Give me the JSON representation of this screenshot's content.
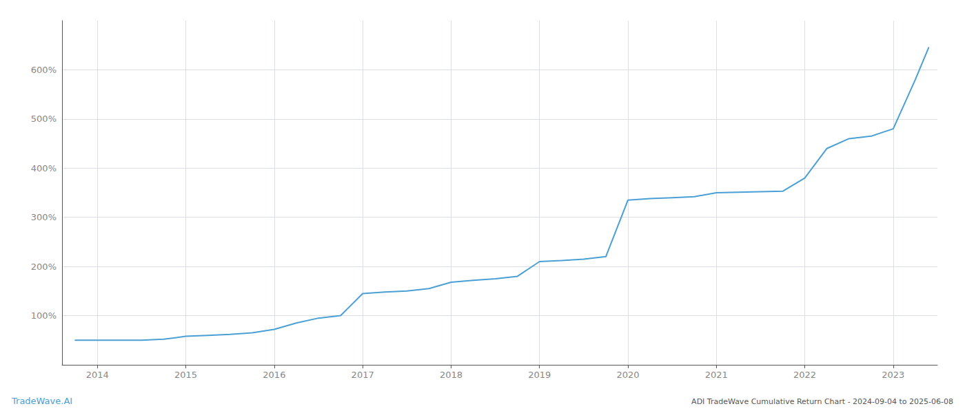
{
  "chart_data": {
    "type": "line",
    "title": "ADI TradeWave Cumulative Return Chart - 2024-09-04 to 2025-06-08",
    "annotations": [
      {
        "text": "TradeWave.AI"
      }
    ],
    "color": "#4a9fd4",
    "x": [
      2013.75,
      2014.0,
      2014.25,
      2014.5,
      2014.75,
      2015.0,
      2015.25,
      2015.5,
      2015.75,
      2016.0,
      2016.25,
      2016.5,
      2016.75,
      2017.0,
      2017.25,
      2017.5,
      2017.75,
      2018.0,
      2018.25,
      2018.5,
      2018.75,
      2019.0,
      2019.25,
      2019.5,
      2019.75,
      2020.0,
      2020.25,
      2020.5,
      2020.75,
      2021.0,
      2021.25,
      2021.5,
      2021.75,
      2022.0,
      2022.25,
      2022.5,
      2022.75,
      2023.0,
      2023.25,
      2023.4
    ],
    "values": [
      50,
      50,
      50,
      50,
      52,
      58,
      60,
      62,
      65,
      72,
      85,
      95,
      100,
      145,
      148,
      150,
      155,
      168,
      172,
      175,
      180,
      210,
      212,
      215,
      220,
      335,
      338,
      340,
      342,
      350,
      351,
      352,
      353,
      380,
      440,
      460,
      465,
      480,
      580,
      645
    ],
    "xlim": [
      2013.6,
      2023.5
    ],
    "xticks": [
      2014,
      2015,
      2016,
      2017,
      2018,
      2019,
      2020,
      2021,
      2022,
      2023
    ],
    "ylim": [
      0,
      700
    ],
    "yticks": [
      {
        "value": 100,
        "label": "100%"
      },
      {
        "value": 200,
        "label": "200%"
      },
      {
        "value": 300,
        "label": "300%"
      },
      {
        "value": 400,
        "label": "400%"
      },
      {
        "value": 500,
        "label": "500%"
      },
      {
        "value": 600,
        "label": "600%"
      }
    ],
    "grid": true
  }
}
